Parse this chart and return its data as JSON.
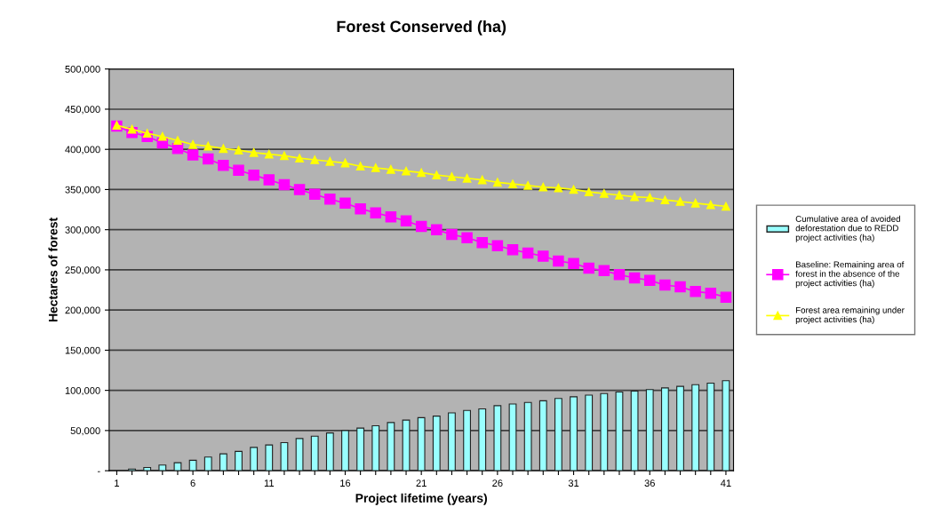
{
  "chart_data": {
    "type": "bar",
    "title": "Forest Conserved (ha)",
    "xlabel": "Project lifetime (years)",
    "ylabel": "Hectares of forest",
    "categories": [
      "1",
      null,
      null,
      null,
      null,
      "6",
      null,
      null,
      null,
      null,
      "11",
      null,
      null,
      null,
      null,
      "16",
      null,
      null,
      null,
      null,
      "21",
      null,
      null,
      null,
      null,
      "26",
      null,
      null,
      null,
      null,
      "31",
      null,
      null,
      null,
      null,
      "36",
      null,
      null,
      null,
      null,
      "41"
    ],
    "series": [
      {
        "name": "Cumulative area of avoided\ndeforestation due to REDD\nproject activities (ha)",
        "color": "#99ffff",
        "values": [
          0,
          2000,
          4000,
          7000,
          10000,
          13000,
          17000,
          21000,
          24000,
          29000,
          32000,
          35000,
          40000,
          43000,
          47000,
          50000,
          53000,
          56000,
          60000,
          63000,
          66000,
          68000,
          72000,
          75000,
          77000,
          81000,
          83000,
          85000,
          87000,
          90000,
          92000,
          94000,
          96000,
          98000,
          99000,
          101000,
          103000,
          105000,
          107000,
          109000,
          112000
        ]
      },
      {
        "name": "Baseline: Remaining area of\nforest in the absence of the\nproject activities (ha)",
        "type": "line",
        "marker": "square",
        "color": "#ff00ff",
        "values": [
          429000,
          421000,
          416000,
          408000,
          401000,
          393000,
          388000,
          380000,
          374000,
          368000,
          362000,
          356000,
          350000,
          344000,
          338000,
          333000,
          326000,
          321000,
          316000,
          311000,
          304000,
          300000,
          294000,
          290000,
          284000,
          280000,
          275000,
          271000,
          267000,
          261000,
          258000,
          252000,
          249000,
          244000,
          240000,
          237000,
          231000,
          229000,
          223000,
          221000,
          216000
        ]
      },
      {
        "name": "Forest area remaining under\nproject activities (ha)",
        "type": "line",
        "marker": "triangle",
        "color": "#ffff00",
        "values": [
          430000,
          425000,
          420000,
          416000,
          411000,
          406000,
          404000,
          401000,
          399000,
          396000,
          394000,
          392000,
          389000,
          387000,
          385000,
          383000,
          379000,
          377000,
          375000,
          373000,
          371000,
          368000,
          366000,
          364000,
          362000,
          359000,
          357000,
          355000,
          353000,
          352000,
          350000,
          347000,
          345000,
          343000,
          341000,
          340000,
          337000,
          335000,
          333000,
          331000,
          329000
        ]
      }
    ],
    "ylim": [
      0,
      500000
    ],
    "yticks": [
      {
        "value": 0,
        "label": "-"
      },
      {
        "value": 50000,
        "label": "50,000"
      },
      {
        "value": 100000,
        "label": "100,000"
      },
      {
        "value": 150000,
        "label": "150,000"
      },
      {
        "value": 200000,
        "label": "200,000"
      },
      {
        "value": 250000,
        "label": "250,000"
      },
      {
        "value": 300000,
        "label": "300,000"
      },
      {
        "value": 350000,
        "label": "350,000"
      },
      {
        "value": 400000,
        "label": "400,000"
      },
      {
        "value": 450000,
        "label": "450,000"
      },
      {
        "value": 500000,
        "label": "500,000"
      }
    ],
    "grid": "y",
    "legend": "right"
  }
}
